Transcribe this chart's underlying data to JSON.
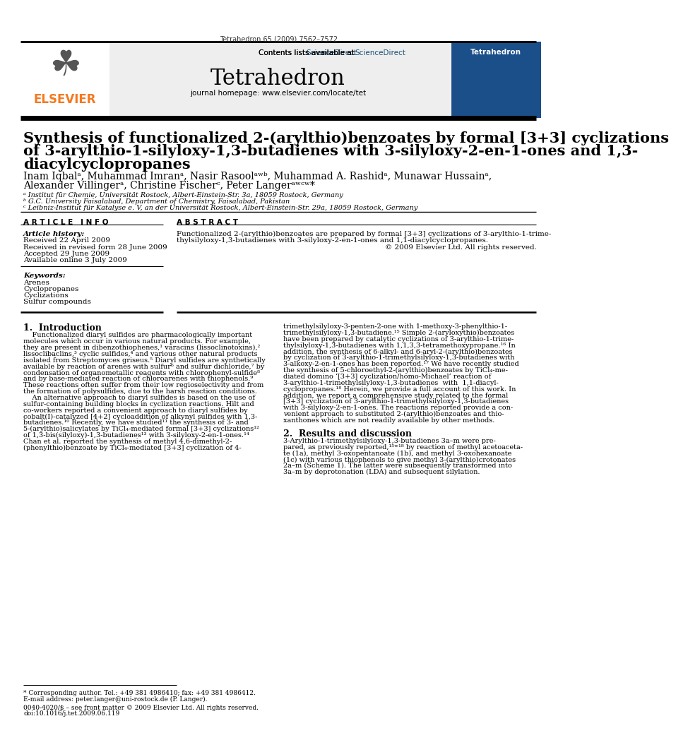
{
  "journal_line": "Tetrahedron 65 (2009) 7562–7572",
  "contents_line": "Contents lists available at ",
  "science_direct": "ScienceDirect",
  "journal_name": "Tetrahedron",
  "journal_homepage": "journal homepage: www.elsevier.com/locate/tet",
  "title_line1": "Synthesis of functionalized 2-(arylthio)benzoates by formal [3+3] cyclizations",
  "title_line2": "of 3-arylthio-1-silyloxy-1,3-butadienes with 3-silyloxy-2-en-1-ones and 1,3-",
  "title_line3": "diacylcyclopropanes",
  "authors_line1": "Inam Iqbalᵃ, Muhammad Imranᵃ, Nasir Rasoolᵃʷᵇ, Muhammad A. Rashidᵃ, Munawar Hussainᵃ,",
  "authors_line2": "Alexander Villingerᵃ, Christine Fischerᶜ, Peter Langerᵃʷᶜʷ*",
  "affil_a": "ᵃ Institut für Chemie, Universität Rostock, Albert-Einstein-Str. 3a, 18059 Rostock, Germany",
  "affil_b": "ᵇ G.C. University Faisalabad, Department of Chemistry, Faisalabad, Pakistan",
  "affil_c": "ᶜ Leibniz-Institut für Katalyse e. V, an der Universität Rostock, Albert-Einstein-Str. 29a, 18059 Rostock, Germany",
  "article_info_header": "A R T I C L E   I N F O",
  "abstract_header": "A B S T R A C T",
  "article_history_label": "Article history:",
  "received": "Received 22 April 2009",
  "revised": "Received in revised form 28 June 2009",
  "accepted": "Accepted 29 June 2009",
  "available": "Available online 3 July 2009",
  "keywords_label": "Keywords:",
  "keywords": [
    "Arenes",
    "Cyclopropanes",
    "Cyclizations",
    "Sulfur compounds"
  ],
  "abstract_line1": "Functionalized 2-(arylthio)benzoates are prepared by formal [3+3] cyclizations of 3-arylthio-1-trime-",
  "abstract_line2": "thylsilyloxy-1,3-butadienes with 3-silyloxy-2-en-1-ones and 1,1-diacylcyclopropanes.",
  "abstract_line3": "© 2009 Elsevier Ltd. All rights reserved.",
  "section1_header": "1.  Introduction",
  "intro_col1_lines": [
    "    Functionalized diaryl sulfides are pharmacologically important",
    "molecules which occur in various natural products. For example,",
    "they are present in dibenzothiophenes,¹ varacins (lissoclinotoxins),²",
    "lissoclibaclins,³ cyclic sulfides,⁴ and various other natural products",
    "isolated from Streptomyces griseus.⁵ Diaryl sulfides are synthetically",
    "available by reaction of arenes with sulfur⁶ and sulfur dichloride,⁷ by",
    "condensation of organometallic reagents with chlorophenyl-sulfide⁸",
    "and by base-mediated reaction of chloroarenes with thiophenols.⁹",
    "These reactions often suffer from their low regioselectivity and from",
    "the formation of polysulfides, due to the harsh reaction conditions.",
    "    An alternative approach to diaryl sulfides is based on the use of",
    "sulfur-containing building blocks in cyclization reactions. Hilt and",
    "co-workers reported a convenient approach to diaryl sulfides by",
    "cobalt(I)-catalyzed [4+2] cycloaddition of alkynyl sulfides with 1,3-",
    "butadienes.¹⁰ Recently, we have studied¹¹ the synthesis of 3- and",
    "5-(arylthio)salicylates by TiCl₄-mediated formal [3+3] cyclizations¹²",
    "of 1,3-bis(silyloxy)-1,3-butadienes¹³ with 3-silyloxy-2-en-1-ones.¹⁴",
    "Chan et al. reported the synthesis of methyl 4,6-dimethyl-2-",
    "(phenylthio)benzoate by TiCl₄-mediated [3+3] cyclization of 4-"
  ],
  "intro_col2_lines": [
    "trimethylsilyloxy-3-penten-2-one with 1-methoxy-3-phenylthio-1-",
    "trimethylsilyloxy-1,3-butadiene.¹⁵ Simple 2-(aryloxythio)benzoates",
    "have been prepared by catalytic cyclizations of 3-arylthio-1-trime-",
    "thylsilyloxy-1,3-butadienes with 1,1,3,3-tetramethoxypropane.¹⁶ In",
    "addition, the synthesis of 6-alkyl- and 6-aryl-2-(arylthio)benzoates",
    "by cyclization of 3-arylthio-1-trimethylsilyloxy-1,3-butadienes with",
    "3-alkoxy-2-en-1-ones has been reported.¹⁷ We have recently studied",
    "the synthesis of 5-chloroethyl-2-(arylthio)benzoates by TiCl₄-me-",
    "diated domino ‘[3+3] cyclization/homo-Michael’ reaction of",
    "3-arylthio-1-trimethylsilyloxy-1,3-butadienes  with  1,1-diacyl-",
    "cyclopropanes.¹⁸ Herein, we provide a full account of this work. In",
    "addition, we report a comprehensive study related to the formal",
    "[3+3] cyclization of 3-arylthio-1-trimethylsilyloxy-1,3-butadienes",
    "with 3-silyloxy-2-en-1-ones. The reactions reported provide a con-",
    "venient approach to substituted 2-(arylthio)benzoates and thio-",
    "xanthones which are not readily available by other methods."
  ],
  "section2_header": "2.  Results and discussion",
  "results_col2_lines": [
    "3-Arylthio-1-trimethylsilyloxy-1,3-butadienes 3a–m were pre-",
    "pared, as previously reported,¹⁵ʷ¹⁸ by reaction of methyl acetoaceta-",
    "te (1a), methyl 3-oxopentanoate (1b), and methyl 3-oxohexanoate",
    "(1c) with various thiophenols to give methyl 3-(arylthio)crotonates",
    "2a–m (Scheme 1). The latter were subsequently transformed into",
    "3a–m by deprotonation (LDA) and subsequent silylation."
  ],
  "footnote_star": "* Corresponding author. Tel.: +49 381 4986410; fax: +49 381 4986412.",
  "footnote_email": "E-mail address: peter.langer@uni-rostock.de (P. Langer).",
  "footnote_issn": "0040-4020/$ – see front matter © 2009 Elsevier Ltd. All rights reserved.",
  "footnote_doi": "doi:10.1016/j.tet.2009.06.119",
  "bg_color": "#ffffff",
  "header_bg": "#eeeeee",
  "elsevier_orange": "#F47920",
  "scidir_blue": "#1a5276",
  "cover_blue": "#1a4f8a"
}
